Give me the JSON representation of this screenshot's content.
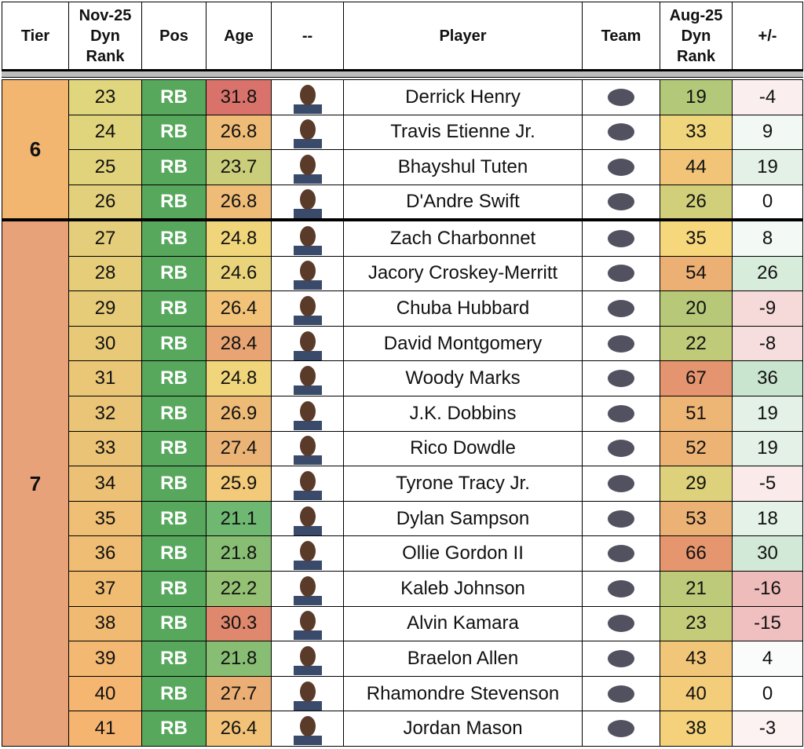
{
  "header": {
    "columns": [
      "Tier",
      "Nov-25\nDyn\nRank",
      "Pos",
      "Age",
      "--",
      "Player",
      "Team",
      "Aug-25\nDyn\nRank",
      "+/-"
    ]
  },
  "tiers": [
    {
      "tier": 6,
      "rows": [
        [
          23,
          "RB",
          31.8,
          "Derrick Henry",
          19,
          -4
        ],
        [
          24,
          "RB",
          26.8,
          "Travis Etienne Jr.",
          33,
          9
        ],
        [
          25,
          "RB",
          23.7,
          "Bhayshul Tuten",
          44,
          19
        ],
        [
          26,
          "RB",
          26.8,
          "D'Andre Swift",
          26,
          0
        ]
      ]
    },
    {
      "tier": 7,
      "rows": [
        [
          27,
          "RB",
          24.8,
          "Zach Charbonnet",
          35,
          8
        ],
        [
          28,
          "RB",
          24.6,
          "Jacory Croskey-Merritt",
          54,
          26
        ],
        [
          29,
          "RB",
          26.4,
          "Chuba Hubbard",
          20,
          -9
        ],
        [
          30,
          "RB",
          28.4,
          "David Montgomery",
          22,
          -8
        ],
        [
          31,
          "RB",
          24.8,
          "Woody Marks",
          67,
          36
        ],
        [
          32,
          "RB",
          26.9,
          "J.K. Dobbins",
          51,
          19
        ],
        [
          33,
          "RB",
          27.4,
          "Rico Dowdle",
          52,
          19
        ],
        [
          34,
          "RB",
          25.9,
          "Tyrone Tracy Jr.",
          29,
          -5
        ],
        [
          35,
          "RB",
          21.1,
          "Dylan Sampson",
          53,
          18
        ],
        [
          36,
          "RB",
          21.8,
          "Ollie Gordon II",
          66,
          30
        ],
        [
          37,
          "RB",
          22.2,
          "Kaleb Johnson",
          21,
          -16
        ],
        [
          38,
          "RB",
          30.3,
          "Alvin Kamara",
          23,
          -15
        ],
        [
          39,
          "RB",
          21.8,
          "Braelon Allen",
          43,
          4
        ],
        [
          40,
          "RB",
          27.7,
          "Rhamondre Stevenson",
          40,
          0
        ],
        [
          41,
          "RB",
          26.4,
          "Jordan Mason",
          38,
          -3
        ]
      ]
    }
  ]
}
